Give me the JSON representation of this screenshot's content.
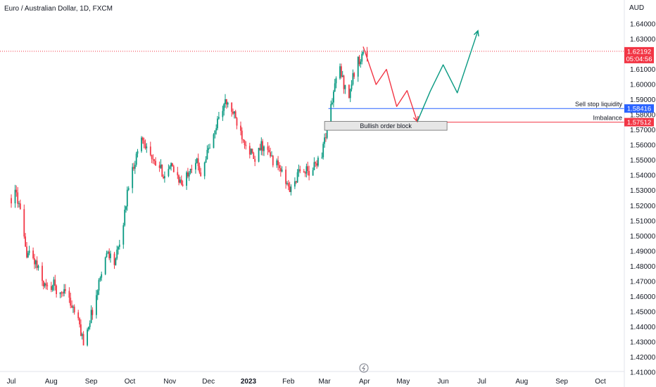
{
  "header": {
    "title": "Euro / Australian Dollar, 1D, FXCM",
    "currency": "AUD"
  },
  "chart_data": {
    "type": "candlestick",
    "symbol": "EURAUD",
    "interval": "1D",
    "x_tick_labels": [
      "Jul",
      "Aug",
      "Sep",
      "Oct",
      "Nov",
      "Dec",
      "2023",
      "Feb",
      "Mar",
      "Apr",
      "May",
      "Jun",
      "Jul",
      "Aug",
      "Sep",
      "Oct"
    ],
    "y_tick_labels": [
      "1.64000",
      "1.63000",
      "1.61000",
      "1.60000",
      "1.59000",
      "1.58000",
      "1.57000",
      "1.56000",
      "1.55000",
      "1.54000",
      "1.53000",
      "1.52000",
      "1.51000",
      "1.50000",
      "1.49000",
      "1.48000",
      "1.47000",
      "1.46000",
      "1.45000",
      "1.44000",
      "1.43000",
      "1.42000",
      "1.41000"
    ],
    "ylim": [
      1.41,
      1.645
    ],
    "grid": false,
    "price_path": [
      [
        "2022-07-01",
        1.525
      ],
      [
        "2022-07-05",
        1.528
      ],
      [
        "2022-07-08",
        1.515
      ],
      [
        "2022-07-12",
        1.49
      ],
      [
        "2022-07-15",
        1.488
      ],
      [
        "2022-07-20",
        1.482
      ],
      [
        "2022-07-25",
        1.47
      ],
      [
        "2022-07-29",
        1.465
      ],
      [
        "2022-08-03",
        1.468
      ],
      [
        "2022-08-08",
        1.46
      ],
      [
        "2022-08-12",
        1.467
      ],
      [
        "2022-08-16",
        1.455
      ],
      [
        "2022-08-19",
        1.45
      ],
      [
        "2022-08-23",
        1.44
      ],
      [
        "2022-08-26",
        1.43
      ],
      [
        "2022-08-31",
        1.445
      ],
      [
        "2022-09-05",
        1.46
      ],
      [
        "2022-09-09",
        1.478
      ],
      [
        "2022-09-14",
        1.49
      ],
      [
        "2022-09-19",
        1.482
      ],
      [
        "2022-09-23",
        1.494
      ],
      [
        "2022-09-27",
        1.515
      ],
      [
        "2022-09-30",
        1.535
      ],
      [
        "2022-10-05",
        1.55
      ],
      [
        "2022-10-10",
        1.565
      ],
      [
        "2022-10-14",
        1.56
      ],
      [
        "2022-10-19",
        1.548
      ],
      [
        "2022-10-24",
        1.545
      ],
      [
        "2022-10-28",
        1.54
      ],
      [
        "2022-11-02",
        1.545
      ],
      [
        "2022-11-07",
        1.54
      ],
      [
        "2022-11-11",
        1.532
      ],
      [
        "2022-11-16",
        1.545
      ],
      [
        "2022-11-21",
        1.55
      ],
      [
        "2022-11-25",
        1.542
      ],
      [
        "2022-11-30",
        1.555
      ],
      [
        "2022-12-05",
        1.565
      ],
      [
        "2022-12-09",
        1.58
      ],
      [
        "2022-12-14",
        1.588
      ],
      [
        "2022-12-19",
        1.583
      ],
      [
        "2022-12-23",
        1.575
      ],
      [
        "2022-12-28",
        1.565
      ],
      [
        "2023-01-03",
        1.555
      ],
      [
        "2023-01-06",
        1.548
      ],
      [
        "2023-01-11",
        1.56
      ],
      [
        "2023-01-16",
        1.555
      ],
      [
        "2023-01-20",
        1.55
      ],
      [
        "2023-01-25",
        1.545
      ],
      [
        "2023-01-30",
        1.535
      ],
      [
        "2023-02-03",
        1.53
      ],
      [
        "2023-02-08",
        1.54
      ],
      [
        "2023-02-13",
        1.545
      ],
      [
        "2023-02-17",
        1.54
      ],
      [
        "2023-02-22",
        1.548
      ],
      [
        "2023-02-27",
        1.555
      ],
      [
        "2023-03-02",
        1.568
      ],
      [
        "2023-03-06",
        1.585
      ],
      [
        "2023-03-09",
        1.6
      ],
      [
        "2023-03-13",
        1.61
      ],
      [
        "2023-03-16",
        1.6
      ],
      [
        "2023-03-20",
        1.593
      ],
      [
        "2023-03-23",
        1.605
      ],
      [
        "2023-03-27",
        1.615
      ],
      [
        "2023-03-30",
        1.62
      ],
      [
        "2023-04-03",
        1.62
      ]
    ],
    "projection": [
      {
        "name": "bearish-leg",
        "color": "#f23645",
        "points": [
          [
            "2023-03-31",
            1.625
          ],
          [
            "2023-04-10",
            1.6
          ],
          [
            "2023-04-18",
            1.61
          ],
          [
            "2023-04-26",
            1.5855
          ],
          [
            "2023-05-04",
            1.596
          ],
          [
            "2023-05-12",
            1.5755
          ]
        ]
      },
      {
        "name": "bullish-leg",
        "color": "#089981",
        "points": [
          [
            "2023-05-12",
            1.5755
          ],
          [
            "2023-05-22",
            1.5955
          ],
          [
            "2023-06-01",
            1.613
          ],
          [
            "2023-06-12",
            1.5945
          ],
          [
            "2023-06-28",
            1.6355
          ]
        ]
      }
    ],
    "levels": [
      {
        "label": "Sell stop liquidity",
        "value": 1.58416,
        "value_label": "1.58416",
        "color": "#2962ff",
        "from": "2023-03-04"
      },
      {
        "label": "Imbalance",
        "value": 1.57512,
        "value_label": "1.57512",
        "color": "#f23645",
        "from": "2023-03-01"
      }
    ],
    "zone": {
      "label": "Bullish order block",
      "from": "2023-03-01",
      "to": "2023-06-04",
      "top": 1.5756,
      "bottom": 1.5698
    },
    "current_price": {
      "value": 1.62192,
      "label": "1.62192",
      "countdown": "05:04:56",
      "color": "#f23645"
    }
  }
}
